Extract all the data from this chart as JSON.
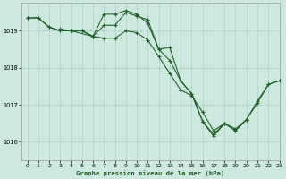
{
  "title": "Graphe pression niveau de la mer (hPa)",
  "background_color": "#cce8df",
  "grid_color": "#b0d4c8",
  "line_color": "#1a5e20",
  "xlim": [
    -0.5,
    23
  ],
  "ylim": [
    1015.5,
    1019.75
  ],
  "yticks": [
    1016,
    1017,
    1018,
    1019
  ],
  "xticks": [
    0,
    1,
    2,
    3,
    4,
    5,
    6,
    7,
    8,
    9,
    10,
    11,
    12,
    13,
    14,
    15,
    16,
    17,
    18,
    19,
    20,
    21,
    22,
    23
  ],
  "series": [
    {
      "x": [
        0,
        1,
        2,
        3,
        4,
        5,
        6,
        7,
        8,
        9,
        10,
        11,
        12,
        13,
        14,
        15,
        16,
        17,
        18,
        19,
        20,
        21,
        22,
        23
      ],
      "y": [
        1019.35,
        1019.35,
        1019.1,
        1019.0,
        1019.0,
        1019.0,
        1018.85,
        1019.15,
        1019.15,
        1019.5,
        1019.4,
        1019.3,
        1018.5,
        1018.2,
        1017.65,
        1017.3,
        1016.55,
        1016.2,
        1016.5,
        1016.3,
        1016.6,
        1017.1,
        1017.55,
        1017.65
      ]
    },
    {
      "x": [
        0,
        1,
        2,
        3,
        4,
        5,
        6,
        7,
        8,
        9,
        10,
        11,
        12,
        13,
        14,
        15,
        16,
        17,
        18,
        19,
        20
      ],
      "y": [
        1019.35,
        1019.35,
        1019.1,
        1019.0,
        1019.0,
        1019.0,
        1018.85,
        1019.45,
        1019.45,
        1019.55,
        1019.45,
        1019.2,
        1018.5,
        1018.55,
        1017.65,
        1017.3,
        1016.55,
        1016.15,
        1016.5,
        1016.3,
        1016.6
      ]
    },
    {
      "x": [
        3,
        4,
        6,
        7,
        8,
        9,
        10,
        11,
        12,
        13,
        14,
        15,
        16,
        17,
        18,
        19,
        20,
        21,
        22,
        23
      ],
      "y": [
        1019.05,
        1019.0,
        1018.85,
        1018.8,
        1018.8,
        1019.0,
        1018.95,
        1018.75,
        1018.3,
        1017.85,
        1017.4,
        1017.25,
        1016.8,
        1016.3,
        1016.5,
        1016.35,
        1016.6,
        1017.05,
        1017.55,
        1017.65
      ]
    }
  ]
}
